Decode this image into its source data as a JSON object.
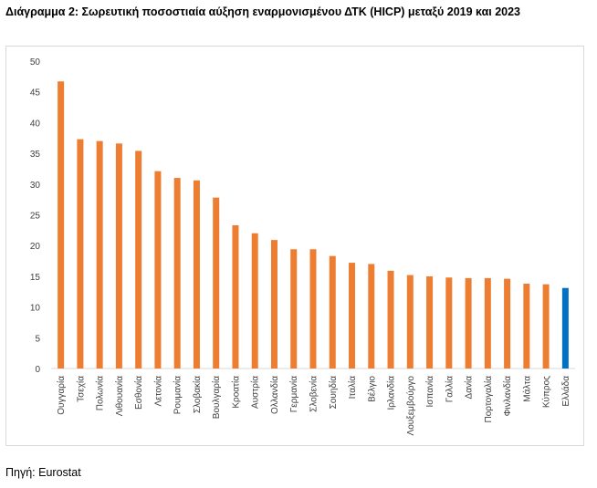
{
  "title": "Διάγραμμα 2: Σωρευτική ποσοστιαία αύξηση εναρμονισμένου ΔΤΚ (HICP)  μεταξύ 2019 και 2023",
  "source": "Πηγή: Eurostat",
  "colors": {
    "default_bar": "#ED7D31",
    "highlight_bar": "#0070C0",
    "axis": "#d9d9d9",
    "text": "#404040"
  },
  "chart_data": {
    "type": "bar",
    "title": "",
    "xlabel": "",
    "ylabel": "",
    "ylim": [
      0,
      50
    ],
    "yticks": [
      0,
      5,
      10,
      15,
      20,
      25,
      30,
      35,
      40,
      45,
      50
    ],
    "grid": false,
    "legend": "none",
    "highlight_category": "Ελλάδα",
    "categories": [
      "Ουγγαρία",
      "Τσεχία",
      "Πολωνία",
      "Λιθουανία",
      "Εσθονία",
      "Λετονία",
      "Ρουμανία",
      "Σλοβακία",
      "Βουλγαρία",
      "Κροατία",
      "Αυστρία",
      "Ολλανδία",
      "Γερμανία",
      "Σλοβενία",
      "Σουηδία",
      "Ιταλία",
      "Βέλγιο",
      "Ιρλανδία",
      "Λουξεμβούργο",
      "Ισπανία",
      "Γαλλία",
      "Δανία",
      "Πορτογαλία",
      "Φινλανδία",
      "Μάλτα",
      "Κύπρος",
      "Ελλάδα"
    ],
    "values": [
      46.7,
      37.3,
      37.0,
      36.6,
      35.4,
      32.1,
      31.0,
      30.6,
      27.8,
      23.3,
      22.0,
      20.9,
      19.4,
      19.4,
      18.3,
      17.2,
      17.0,
      15.9,
      15.2,
      15.0,
      14.8,
      14.7,
      14.7,
      14.6,
      13.8,
      13.7,
      13.1
    ]
  }
}
